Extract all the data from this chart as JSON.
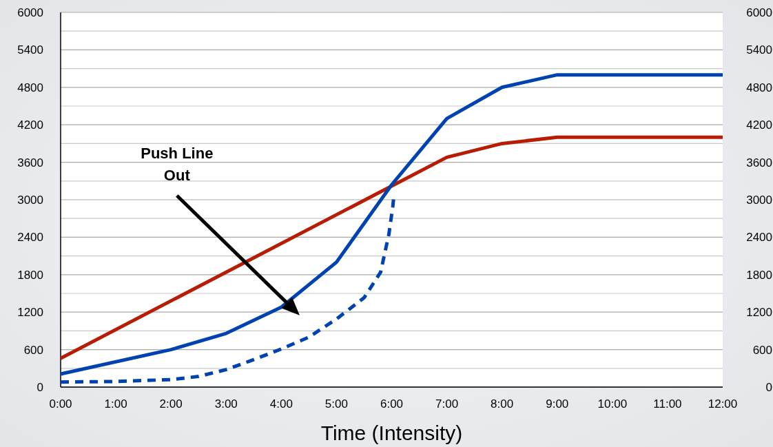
{
  "chart_data": {
    "type": "line",
    "xlabel": "Time (Intensity)",
    "xlim": [
      0,
      12
    ],
    "xticks": [
      {
        "value": 0,
        "label": "0:00"
      },
      {
        "value": 1,
        "label": "1:00"
      },
      {
        "value": 2,
        "label": "2:00"
      },
      {
        "value": 3,
        "label": "3:00"
      },
      {
        "value": 4,
        "label": "4:00"
      },
      {
        "value": 5,
        "label": "5:00"
      },
      {
        "value": 6,
        "label": "6:00"
      },
      {
        "value": 7,
        "label": "7:00"
      },
      {
        "value": 8,
        "label": "8:00"
      },
      {
        "value": 9,
        "label": "9:00"
      },
      {
        "value": 10,
        "label": "10:00"
      },
      {
        "value": 11,
        "label": "11:00"
      },
      {
        "value": 12,
        "label": "12:00"
      }
    ],
    "ylim": [
      0,
      6000
    ],
    "yticks": [
      0,
      {
        "value": 300,
        "label": null
      },
      600,
      {
        "value": 900,
        "label": null
      },
      1200,
      {
        "value": 1500,
        "label": null
      },
      1800,
      {
        "value": 2100,
        "label": null
      },
      2400,
      {
        "value": 2700,
        "label": null
      },
      3000,
      {
        "value": 3300,
        "label": null
      },
      3600,
      {
        "value": 3900,
        "label": null
      },
      4200,
      {
        "value": 4500,
        "label": null
      },
      4800,
      {
        "value": 5100,
        "label": null
      },
      5400,
      {
        "value": 5700,
        "label": null
      },
      6000
    ],
    "y2lim": [
      0,
      6000
    ],
    "y2ticks": [
      0,
      600,
      1200,
      1800,
      2400,
      3000,
      3600,
      4200,
      4800,
      5400,
      6000
    ],
    "grid": "y",
    "marker": "none",
    "series": [
      {
        "color": "#b81c05",
        "line_style": "solid",
        "x": [
          0,
          7,
          8,
          9,
          12
        ],
        "values": [
          460,
          3680,
          3900,
          4000,
          4000
        ]
      },
      {
        "color": "#0042b0",
        "line_style": "solid",
        "x": [
          0,
          2,
          3,
          4,
          5,
          6,
          7,
          8,
          9,
          12
        ],
        "values": [
          210,
          600,
          860,
          1280,
          2000,
          3240,
          4300,
          4800,
          5000,
          5000
        ]
      },
      {
        "color": "#0042b0",
        "line_style": "dashed",
        "x": [
          0,
          1,
          2,
          2.5,
          3,
          3.5,
          4,
          4.5,
          5,
          5.5,
          5.8,
          5.95,
          6.02,
          6.04
        ],
        "values": [
          80,
          90,
          120,
          170,
          280,
          440,
          610,
          800,
          1090,
          1430,
          1840,
          2450,
          2890,
          3060
        ]
      }
    ],
    "annotations": [
      {
        "text": "Push Line Out",
        "x": 4.1,
        "y": 1350
      }
    ]
  }
}
